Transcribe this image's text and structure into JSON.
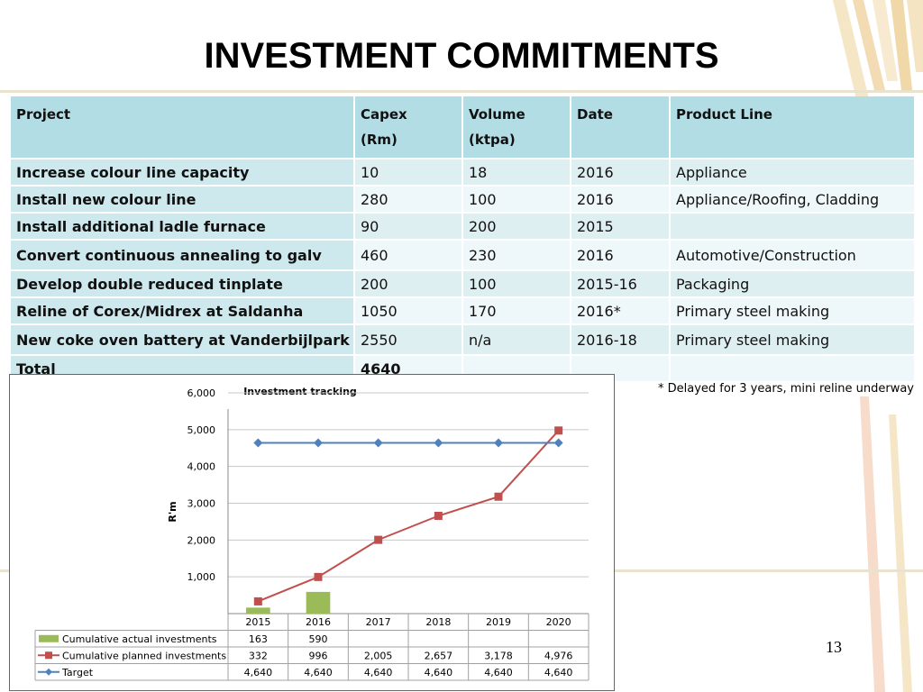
{
  "title": "INVESTMENT COMMITMENTS",
  "table": {
    "headers": [
      [
        "Project"
      ],
      [
        "Capex",
        "(Rm)"
      ],
      [
        "Volume",
        "(ktpa)"
      ],
      [
        "Date"
      ],
      [
        "Product Line"
      ]
    ],
    "rows": [
      [
        "Increase colour line capacity",
        "10",
        "18",
        "2016",
        "Appliance"
      ],
      [
        "Install new colour line",
        "280",
        "100",
        "2016",
        "Appliance/Roofing, Cladding"
      ],
      [
        "Install additional ladle furnace",
        "90",
        "200",
        "2015",
        ""
      ],
      [
        "Convert continuous annealing to galv",
        "460",
        "230",
        "2016",
        "Automotive/Construction"
      ],
      [
        "Develop double reduced tinplate",
        "200",
        "100",
        "2015-16",
        "Packaging"
      ],
      [
        "Reline of Corex/Midrex at Saldanha",
        "1050",
        "170",
        "2016*",
        "Primary steel making"
      ],
      [
        "New coke oven battery at Vanderbijlpark",
        "2550",
        "n/a",
        "2016-18",
        "Primary steel making"
      ],
      [
        "Total",
        "4640",
        "",
        "",
        ""
      ]
    ]
  },
  "note": "* Delayed for 3 years, mini reline underway",
  "page_number": "13",
  "chart_data": {
    "type": "bar",
    "title": "Investment tracking",
    "ylabel": "R'm",
    "xlabel": "",
    "ylim": [
      0,
      6000
    ],
    "yticks": [
      "6,000",
      "5,000",
      "4,000",
      "3,000",
      "2,000",
      "1,000"
    ],
    "ytick_values": [
      6000,
      5000,
      4000,
      3000,
      2000,
      1000
    ],
    "categories": [
      "2015",
      "2016",
      "2017",
      "2018",
      "2019",
      "2020"
    ],
    "series": [
      {
        "name": "Cumulative actual investments",
        "kind": "bar",
        "color": "#9bbb59",
        "values": [
          163,
          590,
          null,
          null,
          null,
          null
        ],
        "labels": [
          "163",
          "590",
          "",
          "",
          "",
          ""
        ]
      },
      {
        "name": "Cumulative planned investments",
        "kind": "line",
        "marker": "square",
        "color": "#c0504d",
        "values": [
          332,
          996,
          2005,
          2657,
          3178,
          4976
        ],
        "labels": [
          "332",
          "996",
          "2,005",
          "2,657",
          "3,178",
          "4,976"
        ]
      },
      {
        "name": "Target",
        "kind": "line",
        "marker": "diamond",
        "color": "#4f81bd",
        "values": [
          4640,
          4640,
          4640,
          4640,
          4640,
          4640
        ],
        "labels": [
          "4,640",
          "4,640",
          "4,640",
          "4,640",
          "4,640",
          "4,640"
        ]
      }
    ],
    "grid": true,
    "legend": "data-table-below"
  }
}
